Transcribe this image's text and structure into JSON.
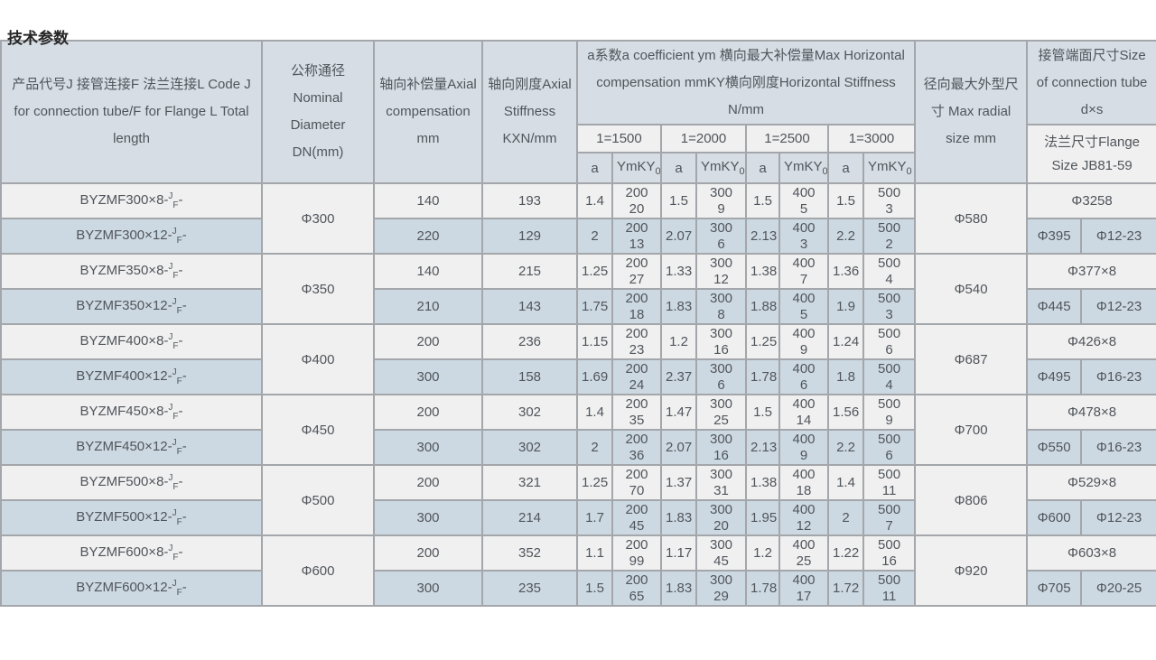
{
  "page": {
    "title": "技术参数"
  },
  "colors": {
    "header_bg": "#d6dde4",
    "row_light_bg": "#f0f0f0",
    "row_alt_bg": "#cdd9e2",
    "border": "#a3a6aa",
    "text": "#50555b"
  },
  "table": {
    "header": {
      "product": "产品代号J 接管连接F 法兰连接L Code J for connection tube/F for Flange L Total length",
      "dn": "公称通径Nominal Diameter DN(mm)",
      "comp": "轴向补偿量Axial compensation mm",
      "stiff": "轴向刚度Axial Stiffness KXN/mm",
      "group": "a系数a coefficient ym 横向最大补偿量Max Horizontal compensation mmKY横向刚度Horizontal Stiffness N/mm",
      "lengths": [
        "1=1500",
        "1=2000",
        "1=2500",
        "1=3000"
      ],
      "a_label": "a",
      "ym_label_base": "YmKY",
      "ym_label_sub": "0",
      "radial": "径向最大外型尺寸 Max radial size mm",
      "tube": "接管端面尺寸Size of connection tube d×s",
      "flange": "法兰尺寸Flange Size JB81-59"
    },
    "groups": [
      {
        "dn": "Φ300",
        "radial": "Φ580",
        "rows": [
          {
            "code_base": "BYZMF300×8-",
            "code_sup": "J",
            "code_sub": "F",
            "code_tail": "-",
            "comp": "140",
            "stiff": "193",
            "cells": [
              "1.4",
              "200\n20",
              "1.5",
              "300\n9",
              "1.5",
              "400\n5",
              "1.5",
              "500\n3"
            ],
            "tube": "Φ3258"
          },
          {
            "code_base": "BYZMF300×12-",
            "code_sup": "J",
            "code_sub": "F",
            "code_tail": "-",
            "comp": "220",
            "stiff": "129",
            "cells": [
              "2",
              "200\n13",
              "2.07",
              "300\n6",
              "2.13",
              "400\n3",
              "2.2",
              "500\n2"
            ],
            "flange_d": "Φ395",
            "flange_bolt": "Φ12-23"
          }
        ]
      },
      {
        "dn": "Φ350",
        "radial": "Φ540",
        "rows": [
          {
            "code_base": "BYZMF350×8-",
            "code_sup": "J",
            "code_sub": "F",
            "code_tail": "-",
            "comp": "140",
            "stiff": "215",
            "cells": [
              "1.25",
              "200\n27",
              "1.33",
              "300\n12",
              "1.38",
              "400\n7",
              "1.36",
              "500\n4"
            ],
            "tube": "Φ377×8"
          },
          {
            "code_base": "BYZMF350×12-",
            "code_sup": "J",
            "code_sub": "F",
            "code_tail": "-",
            "comp": "210",
            "stiff": "143",
            "cells": [
              "1.75",
              "200\n18",
              "1.83",
              "300\n8",
              "1.88",
              "400\n5",
              "1.9",
              "500\n3"
            ],
            "flange_d": "Φ445",
            "flange_bolt": "Φ12-23"
          }
        ]
      },
      {
        "dn": "Φ400",
        "radial": "Φ687",
        "rows": [
          {
            "code_base": "BYZMF400×8-",
            "code_sup": "J",
            "code_sub": "F",
            "code_tail": "-",
            "comp": "200",
            "stiff": "236",
            "cells": [
              "1.15",
              "200\n23",
              "1.2",
              "300\n16",
              "1.25",
              "400\n9",
              "1.24",
              "500\n6"
            ],
            "tube": "Φ426×8"
          },
          {
            "code_base": "BYZMF400×12-",
            "code_sup": "J",
            "code_sub": "F",
            "code_tail": "-",
            "comp": "300",
            "stiff": "158",
            "cells": [
              "1.69",
              "200\n24",
              "2.37",
              "300\n6",
              "1.78",
              "400\n6",
              "1.8",
              "500\n4"
            ],
            "flange_d": "Φ495",
            "flange_bolt": "Φ16-23"
          }
        ]
      },
      {
        "dn": "Φ450",
        "radial": "Φ700",
        "rows": [
          {
            "code_base": "BYZMF450×8-",
            "code_sup": "J",
            "code_sub": "F",
            "code_tail": "-",
            "comp": "200",
            "stiff": "302",
            "cells": [
              "1.4",
              "200\n35",
              "1.47",
              "300\n25",
              "1.5",
              "400\n14",
              "1.56",
              "500\n9"
            ],
            "tube": "Φ478×8"
          },
          {
            "code_base": "BYZMF450×12-",
            "code_sup": "J",
            "code_sub": "F",
            "code_tail": "-",
            "comp": "300",
            "stiff": "302",
            "cells": [
              "2",
              "200\n36",
              "2.07",
              "300\n16",
              "2.13",
              "400\n9",
              "2.2",
              "500\n6"
            ],
            "flange_d": "Φ550",
            "flange_bolt": "Φ16-23"
          }
        ]
      },
      {
        "dn": "Φ500",
        "radial": "Φ806",
        "rows": [
          {
            "code_base": "BYZMF500×8-",
            "code_sup": "J",
            "code_sub": "F",
            "code_tail": "-",
            "comp": "200",
            "stiff": "321",
            "cells": [
              "1.25",
              "200\n70",
              "1.37",
              "300\n31",
              "1.38",
              "400\n18",
              "1.4",
              "500\n11"
            ],
            "tube": "Φ529×8"
          },
          {
            "code_base": "BYZMF500×12-",
            "code_sup": "J",
            "code_sub": "F",
            "code_tail": "-",
            "comp": "300",
            "stiff": "214",
            "cells": [
              "1.7",
              "200\n45",
              "1.83",
              "300\n20",
              "1.95",
              "400\n12",
              "2",
              "500\n7"
            ],
            "flange_d": "Φ600",
            "flange_bolt": "Φ12-23"
          }
        ]
      },
      {
        "dn": "Φ600",
        "radial": "Φ920",
        "rows": [
          {
            "code_base": "BYZMF600×8-",
            "code_sup": "J",
            "code_sub": "F",
            "code_tail": "-",
            "comp": "200",
            "stiff": "352",
            "cells": [
              "1.1",
              "200\n99",
              "1.17",
              "300\n45",
              "1.2",
              "400\n25",
              "1.22",
              "500\n16"
            ],
            "tube": "Φ603×8"
          },
          {
            "code_base": "BYZMF600×12-",
            "code_sup": "J",
            "code_sub": "F",
            "code_tail": "-",
            "comp": "300",
            "stiff": "235",
            "cells": [
              "1.5",
              "200\n65",
              "1.83",
              "300\n29",
              "1.78",
              "400\n17",
              "1.72",
              "500\n11"
            ],
            "flange_d": "Φ705",
            "flange_bolt": "Φ20-25"
          }
        ]
      }
    ]
  }
}
